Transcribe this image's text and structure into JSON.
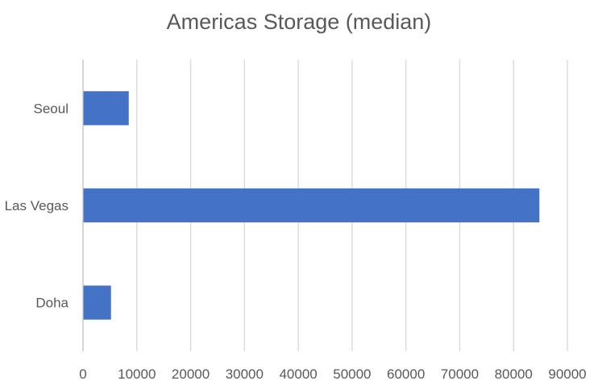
{
  "chart_data": {
    "type": "bar",
    "orientation": "horizontal",
    "title": "Americas Storage (median)",
    "categories": [
      "Seoul",
      "Las Vegas",
      "Doha"
    ],
    "series": [
      {
        "values": [
          8500,
          84800,
          5200
        ]
      }
    ],
    "xlabel": "",
    "ylabel": "",
    "xlim": [
      0,
      90000
    ],
    "xticks": [
      0,
      10000,
      20000,
      30000,
      40000,
      50000,
      60000,
      70000,
      80000,
      90000
    ],
    "grid": "vertical",
    "legend": "none",
    "colors": {
      "bar": "#4472c4",
      "grid": "#d9d9d9",
      "axis": "#bfbfbf",
      "text": "#595959",
      "title": "#595959"
    }
  }
}
